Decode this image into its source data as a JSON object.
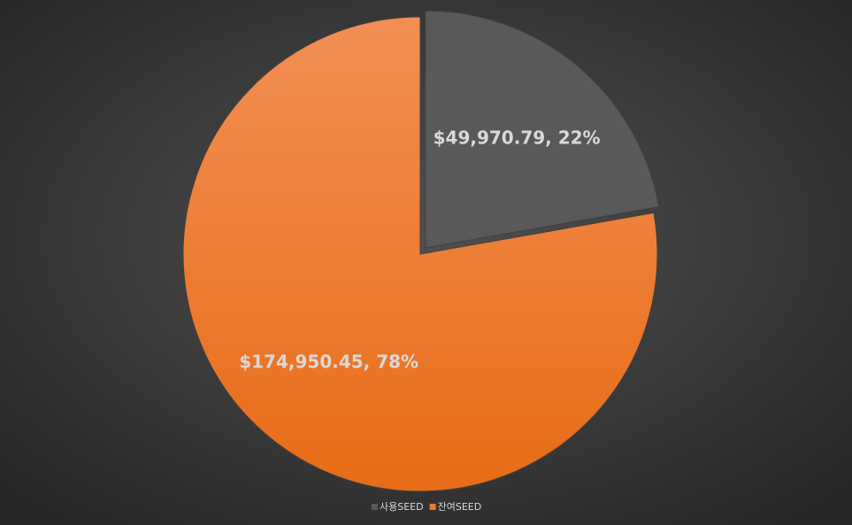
{
  "chart_data": {
    "type": "pie",
    "categories": [
      "사용SEED",
      "잔여SEED"
    ],
    "values": [
      49970.79,
      174950.45
    ],
    "value_labels": [
      "$49,970.79, 22%",
      "$174,950.45, 78%"
    ],
    "colors": [
      "#595959",
      "#f07a26"
    ],
    "legend": "bottom"
  }
}
